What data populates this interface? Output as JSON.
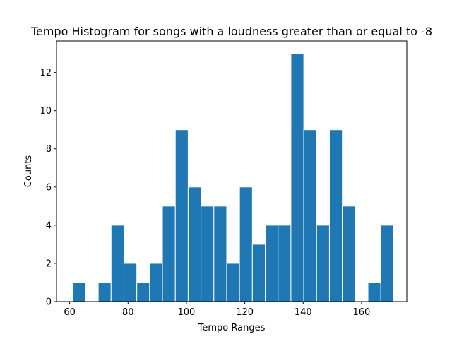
{
  "chart_data": {
    "type": "bar",
    "title": "Tempo Histogram for songs with a loudness greater than or equal to -8",
    "xlabel": "Tempo Ranges",
    "ylabel": "Counts",
    "bar_color": "#1f77b4",
    "edge_color": "#ffffff",
    "xlim": [
      55.5,
      175.5
    ],
    "ylim": [
      0,
      13.65
    ],
    "xticks": [
      60,
      80,
      100,
      120,
      140,
      160
    ],
    "yticks": [
      0,
      2,
      4,
      6,
      8,
      10,
      12
    ],
    "bin_edges": [
      61.0,
      65.4,
      69.8,
      74.2,
      78.6,
      83.0,
      87.4,
      91.8,
      96.2,
      100.6,
      105.0,
      109.4,
      113.8,
      118.2,
      122.6,
      127.0,
      131.4,
      135.8,
      140.2,
      144.6,
      149.0,
      153.4,
      157.8,
      162.2,
      166.6,
      171.0
    ],
    "values": [
      1,
      0,
      1,
      4,
      2,
      1,
      2,
      5,
      9,
      6,
      5,
      5,
      2,
      6,
      3,
      4,
      4,
      13,
      9,
      4,
      9,
      5,
      0,
      1,
      4
    ]
  }
}
